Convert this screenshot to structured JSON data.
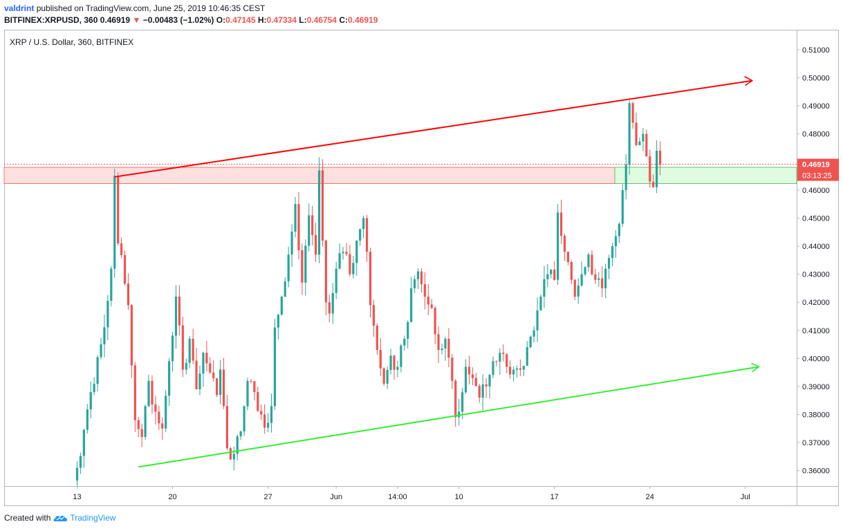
{
  "header": {
    "user": "valdrint",
    "published_text": "published on TradingView.com, June 25, 2019 10:46:35 CEST",
    "symbol": "BITFINEX:XRPUSD, 360",
    "last": "0.46919",
    "change_arrow": "▼",
    "change": "−0.00483 (−1.02%)",
    "o_label": "O:",
    "o": "0.47145",
    "h_label": "H:",
    "h": "0.47334",
    "l_label": "L:",
    "l": "0.46754",
    "c_label": "C:",
    "c": "0.46919"
  },
  "legend": {
    "title": "XRP / U.S. Dollar, 360, BITFINEX"
  },
  "price_tag": {
    "price": "0.46919",
    "countdown": "03:13:25"
  },
  "footer": {
    "created_with": "Created with",
    "brand": "TradingView"
  },
  "colors": {
    "up": "#26a69a",
    "down": "#ef5350",
    "resistance_line": "#ff0000",
    "support_line": "#33ee33",
    "zone_fill": "#fde0e0",
    "zone_green": "#e0fce0",
    "tag_bg": "#ef5350"
  },
  "chart_data": {
    "type": "candlestick",
    "title": "XRP / U.S. Dollar, 360, BITFINEX",
    "interval": "360",
    "ylim": [
      0.355,
      0.516
    ],
    "y_ticks": [
      "0.51000",
      "0.50000",
      "0.49000",
      "0.48000",
      "0.47000",
      "0.46000",
      "0.45000",
      "0.44000",
      "0.43000",
      "0.42000",
      "0.41000",
      "0.40000",
      "0.39000",
      "0.38000",
      "0.37000",
      "0.36000"
    ],
    "x_ticks": [
      {
        "label": "13",
        "index": 0
      },
      {
        "label": "20",
        "index": 28
      },
      {
        "label": "27",
        "index": 56
      },
      {
        "label": "Jun",
        "index": 76
      },
      {
        "label": "14:00",
        "index": 94
      },
      {
        "label": "10",
        "index": 112
      },
      {
        "label": "17",
        "index": 140
      },
      {
        "label": "24",
        "index": 168
      },
      {
        "label": "Jul",
        "index": 196
      }
    ],
    "candle_count": 172,
    "anchors": [
      [
        0,
        0.361
      ],
      [
        4,
        0.388
      ],
      [
        7,
        0.405
      ],
      [
        10,
        0.432
      ],
      [
        11,
        0.465
      ],
      [
        12,
        0.441
      ],
      [
        15,
        0.419
      ],
      [
        17,
        0.378
      ],
      [
        19,
        0.372
      ],
      [
        21,
        0.392
      ],
      [
        23,
        0.381
      ],
      [
        25,
        0.375
      ],
      [
        27,
        0.399
      ],
      [
        29,
        0.422
      ],
      [
        31,
        0.396
      ],
      [
        33,
        0.407
      ],
      [
        35,
        0.389
      ],
      [
        37,
        0.402
      ],
      [
        39,
        0.395
      ],
      [
        41,
        0.387
      ],
      [
        42,
        0.396
      ],
      [
        44,
        0.368
      ],
      [
        46,
        0.366
      ],
      [
        48,
        0.374
      ],
      [
        50,
        0.392
      ],
      [
        52,
        0.388
      ],
      [
        54,
        0.38
      ],
      [
        56,
        0.377
      ],
      [
        57,
        0.383
      ],
      [
        58,
        0.411
      ],
      [
        60,
        0.422
      ],
      [
        62,
        0.437
      ],
      [
        64,
        0.455
      ],
      [
        66,
        0.427
      ],
      [
        68,
        0.451
      ],
      [
        70,
        0.437
      ],
      [
        71,
        0.467
      ],
      [
        72,
        0.442
      ],
      [
        73,
        0.42
      ],
      [
        74,
        0.416
      ],
      [
        76,
        0.432
      ],
      [
        78,
        0.438
      ],
      [
        80,
        0.43
      ],
      [
        82,
        0.442
      ],
      [
        84,
        0.45
      ],
      [
        85,
        0.438
      ],
      [
        86,
        0.419
      ],
      [
        88,
        0.403
      ],
      [
        90,
        0.391
      ],
      [
        92,
        0.401
      ],
      [
        94,
        0.397
      ],
      [
        96,
        0.407
      ],
      [
        98,
        0.425
      ],
      [
        100,
        0.431
      ],
      [
        102,
        0.422
      ],
      [
        104,
        0.418
      ],
      [
        106,
        0.403
      ],
      [
        108,
        0.407
      ],
      [
        110,
        0.392
      ],
      [
        111,
        0.379
      ],
      [
        112,
        0.381
      ],
      [
        114,
        0.397
      ],
      [
        116,
        0.393
      ],
      [
        118,
        0.386
      ],
      [
        120,
        0.39
      ],
      [
        122,
        0.399
      ],
      [
        124,
        0.402
      ],
      [
        126,
        0.397
      ],
      [
        128,
        0.396
      ],
      [
        130,
        0.396
      ],
      [
        132,
        0.404
      ],
      [
        134,
        0.41
      ],
      [
        136,
        0.422
      ],
      [
        138,
        0.43
      ],
      [
        140,
        0.428
      ],
      [
        141,
        0.452
      ],
      [
        143,
        0.438
      ],
      [
        145,
        0.428
      ],
      [
        146,
        0.422
      ],
      [
        148,
        0.43
      ],
      [
        150,
        0.437
      ],
      [
        152,
        0.428
      ],
      [
        154,
        0.425
      ],
      [
        155,
        0.432
      ],
      [
        157,
        0.44
      ],
      [
        159,
        0.448
      ],
      [
        160,
        0.46
      ],
      [
        161,
        0.469
      ],
      [
        162,
        0.491
      ],
      [
        163,
        0.484
      ],
      [
        164,
        0.476
      ],
      [
        166,
        0.48
      ],
      [
        167,
        0.472
      ],
      [
        168,
        0.463
      ],
      [
        169,
        0.461
      ],
      [
        170,
        0.474
      ],
      [
        171,
        0.469
      ]
    ],
    "resistance_line": {
      "from": [
        11,
        0.4647
      ],
      "to": [
        198,
        0.499
      ]
    },
    "support_line": {
      "from": [
        18,
        0.3613
      ],
      "to": [
        200,
        0.397
      ]
    },
    "resistance_zone": [
      0.4623,
      0.4681
    ],
    "current_price": 0.46919
  }
}
